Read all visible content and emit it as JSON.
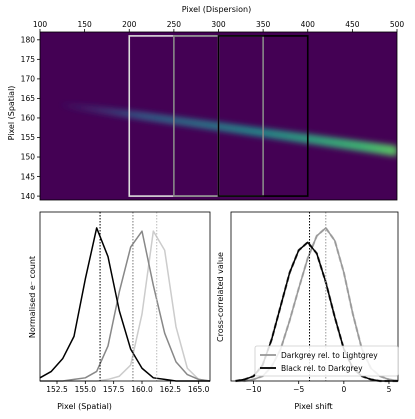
{
  "chart_data": [
    {
      "type": "heatmap",
      "xlabel": "Pixel (Dispersion)",
      "ylabel": "Pixel (Spatial)",
      "xlim": [
        100,
        500
      ],
      "ylim": [
        139,
        182
      ],
      "xticks": [
        "100",
        "150",
        "200",
        "250",
        "300",
        "350",
        "400",
        "450",
        "500"
      ],
      "xtick_values": [
        100,
        150,
        200,
        250,
        300,
        350,
        400,
        450,
        500
      ],
      "yticks": [
        "140",
        "145",
        "150",
        "155",
        "160",
        "165",
        "170",
        "175",
        "180"
      ],
      "ytick_values": [
        140,
        145,
        150,
        155,
        160,
        165,
        170,
        175,
        180
      ],
      "xaxis_position": "top",
      "colormap": "viridis",
      "trace": {
        "x": [
          120,
          500
        ],
        "y": [
          163.5,
          151.5
        ],
        "peak_intensity_x": 480
      },
      "boxes": [
        {
          "name": "Lightgrey",
          "x": [
            200,
            300
          ],
          "y": [
            140,
            181
          ],
          "color": "#dddddd"
        },
        {
          "name": "Darkgrey",
          "x": [
            250,
            350
          ],
          "y": [
            140,
            181
          ],
          "color": "#888888"
        },
        {
          "name": "Black",
          "x": [
            300,
            400
          ],
          "y": [
            140,
            181
          ],
          "color": "#000000"
        }
      ]
    },
    {
      "type": "line",
      "xlabel": "Pixel (Spatial)",
      "ylabel": "Normalised e⁻ count",
      "xlim": [
        151,
        166
      ],
      "ylim": [
        0,
        1.06
      ],
      "xticks": [
        "152.5",
        "155.0",
        "157.5",
        "160.0",
        "162.5",
        "165.0"
      ],
      "xtick_values": [
        152.5,
        155.0,
        157.5,
        160.0,
        162.5,
        165.0
      ],
      "series": [
        {
          "color": "#cccccc",
          "x": [
            151,
            152,
            153,
            154,
            155,
            156,
            157,
            158,
            159,
            160,
            161,
            162,
            163,
            164,
            165,
            166
          ],
          "values": [
            0.0,
            0.0,
            0.0,
            0.0,
            0.0,
            0.0,
            0.01,
            0.03,
            0.1,
            0.42,
            0.94,
            0.82,
            0.34,
            0.08,
            0.01,
            0.0
          ]
        },
        {
          "color": "#888888",
          "x": [
            151,
            152,
            153,
            154,
            155,
            156,
            157,
            158,
            159,
            160,
            161,
            162,
            163,
            164,
            165,
            166
          ],
          "values": [
            0.0,
            0.0,
            0.0,
            0.01,
            0.02,
            0.06,
            0.22,
            0.56,
            0.84,
            0.94,
            0.6,
            0.3,
            0.12,
            0.04,
            0.01,
            0.0
          ]
        },
        {
          "color": "#000000",
          "x": [
            151,
            152,
            153,
            154,
            155,
            156,
            157,
            158,
            159,
            160,
            161,
            162,
            163,
            164,
            165,
            166
          ],
          "values": [
            0.02,
            0.06,
            0.14,
            0.28,
            0.64,
            0.96,
            0.78,
            0.44,
            0.2,
            0.08,
            0.02,
            0.01,
            0.0,
            0.0,
            0.0,
            0.0
          ]
        }
      ],
      "vlines": [
        {
          "x": 161.3,
          "color": "#bbbbbb"
        },
        {
          "x": 159.2,
          "color": "#777777"
        },
        {
          "x": 156.3,
          "color": "#000000"
        }
      ]
    },
    {
      "type": "line",
      "xlabel": "Pixel shift",
      "ylabel": "Cross-correlated value",
      "xlim": [
        -12.5,
        6
      ],
      "ylim": [
        0,
        1.06
      ],
      "xticks": [
        "−10",
        "−5",
        "0",
        "5"
      ],
      "xtick_values": [
        -10,
        -5,
        0,
        5
      ],
      "legend_position": "lower-right",
      "series": [
        {
          "name": "Darkgrey rel. to Lightgrey",
          "color": "#999999",
          "x": [
            -12,
            -11,
            -10,
            -9,
            -8,
            -7,
            -6,
            -5,
            -4,
            -3,
            -2,
            -1,
            0,
            1,
            2,
            3,
            4,
            5,
            6
          ],
          "values": [
            0.0,
            0.0,
            0.01,
            0.03,
            0.09,
            0.2,
            0.38,
            0.58,
            0.77,
            0.91,
            0.96,
            0.88,
            0.68,
            0.42,
            0.2,
            0.08,
            0.03,
            0.01,
            0.0
          ]
        },
        {
          "name": "Black rel. to Darkgrey",
          "color": "#000000",
          "x": [
            -12,
            -11,
            -10,
            -9,
            -8,
            -7,
            -6,
            -5,
            -4,
            -3,
            -2,
            -1,
            0,
            1,
            2,
            3,
            4,
            5,
            6
          ],
          "values": [
            0.0,
            0.01,
            0.03,
            0.1,
            0.26,
            0.47,
            0.68,
            0.82,
            0.87,
            0.8,
            0.62,
            0.4,
            0.2,
            0.08,
            0.03,
            0.01,
            0.0,
            0.0,
            0.0
          ]
        }
      ],
      "vlines": [
        {
          "x": -2.0,
          "color": "#999999"
        },
        {
          "x": -3.8,
          "color": "#000000"
        }
      ]
    }
  ]
}
